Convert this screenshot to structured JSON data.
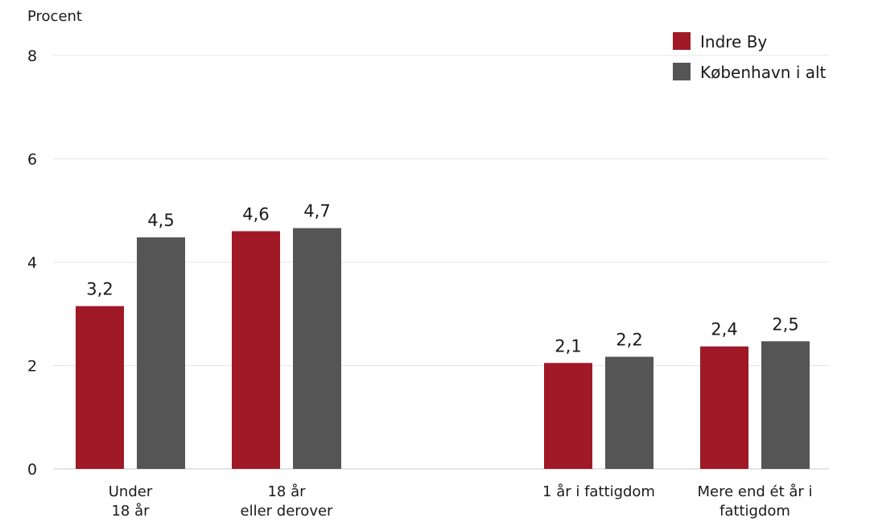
{
  "chart_data": {
    "type": "bar",
    "ylabel": "Procent",
    "ylim": [
      0,
      8
    ],
    "yticks": [
      0,
      2,
      4,
      6,
      8
    ],
    "grid": true,
    "legend_position": "top-right",
    "groups": [
      {
        "lines": [
          "Under",
          "18 år"
        ],
        "gap_after": false
      },
      {
        "lines": [
          "18 år",
          "eller derover"
        ],
        "gap_after": true
      },
      {
        "lines": [
          "1 år i fattigdom"
        ],
        "gap_after": false
      },
      {
        "lines": [
          "Mere end ét år i",
          "fattigdom"
        ],
        "gap_after": false
      }
    ],
    "series": [
      {
        "name": "Indre By",
        "color": "#a01927",
        "values": [
          3.15,
          4.6,
          2.05,
          2.37
        ],
        "labels": [
          "3,2",
          "4,6",
          "2,1",
          "2,4"
        ]
      },
      {
        "name": "København i alt",
        "color": "#555555",
        "values": [
          4.48,
          4.66,
          2.17,
          2.47
        ],
        "labels": [
          "4,5",
          "4,7",
          "2,2",
          "2,5"
        ]
      }
    ]
  }
}
